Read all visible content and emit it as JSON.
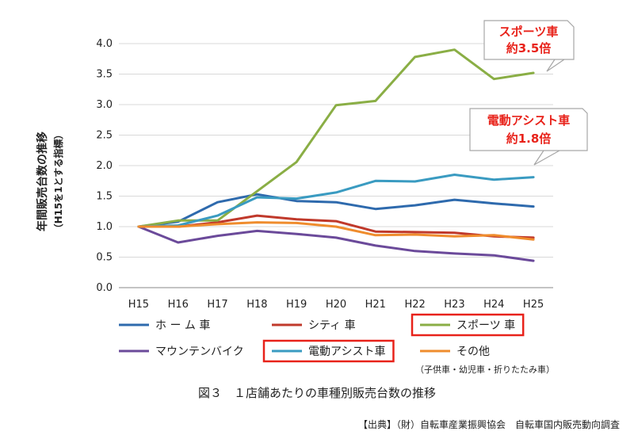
{
  "chart_data": {
    "type": "line",
    "ylabel": "年間販売台数の推移",
    "ylabel_sub": "（H15を1とする指標）",
    "ylim": [
      0,
      4.0
    ],
    "yticks": [
      "0.0",
      "0.5",
      "1.0",
      "1.5",
      "2.0",
      "2.5",
      "3.0",
      "3.5",
      "4.0"
    ],
    "categories": [
      "H15",
      "H16",
      "H17",
      "H18",
      "H19",
      "H20",
      "H21",
      "H22",
      "H23",
      "H24",
      "H25"
    ],
    "grid": true,
    "series": [
      {
        "name": "ホーム車",
        "legend_label": "ホ ー ム 車",
        "color": "#2e6aad",
        "highlight": false,
        "values": [
          1.0,
          1.08,
          1.4,
          1.53,
          1.42,
          1.4,
          1.29,
          1.35,
          1.44,
          1.38,
          1.33
        ]
      },
      {
        "name": "シティ車",
        "legend_label": "シティ 車",
        "color": "#c0392b",
        "highlight": false,
        "values": [
          1.0,
          1.0,
          1.07,
          1.18,
          1.12,
          1.09,
          0.92,
          0.91,
          0.9,
          0.84,
          0.82
        ]
      },
      {
        "name": "スポーツ車",
        "legend_label": "スポーツ 車",
        "color": "#8aae45",
        "highlight": true,
        "values": [
          1.0,
          1.1,
          1.1,
          1.58,
          2.06,
          2.99,
          3.06,
          3.78,
          3.9,
          3.42,
          3.52
        ]
      },
      {
        "name": "マウンテンバイク",
        "legend_label": "マウンテンバイク",
        "color": "#6b4a9a",
        "highlight": false,
        "values": [
          1.0,
          0.74,
          0.85,
          0.93,
          0.88,
          0.82,
          0.69,
          0.6,
          0.56,
          0.53,
          0.44
        ]
      },
      {
        "name": "電動アシスト車",
        "legend_label": "電動アシスト車",
        "color": "#3a9bc1",
        "highlight": true,
        "values": [
          1.0,
          1.02,
          1.18,
          1.48,
          1.46,
          1.56,
          1.75,
          1.74,
          1.85,
          1.77,
          1.81
        ]
      },
      {
        "name": "その他",
        "legend_label": "その他",
        "color": "#ef8c2d",
        "highlight": false,
        "values": [
          1.0,
          1.0,
          1.04,
          1.07,
          1.06,
          1.0,
          0.86,
          0.87,
          0.84,
          0.86,
          0.79
        ]
      }
    ],
    "legend_note": "（子供車・幼児車・折りたたみ車）",
    "annotations": [
      {
        "line1": "スポーツ車",
        "line2": "約3.5倍"
      },
      {
        "line1": "電動アシスト車",
        "line2": "約1.8倍"
      }
    ]
  },
  "caption": "図３　１店舗あたりの車種別販売台数の推移",
  "source": "【出典】（財）自転車産業振興協会　自転車国内販売動向調査"
}
